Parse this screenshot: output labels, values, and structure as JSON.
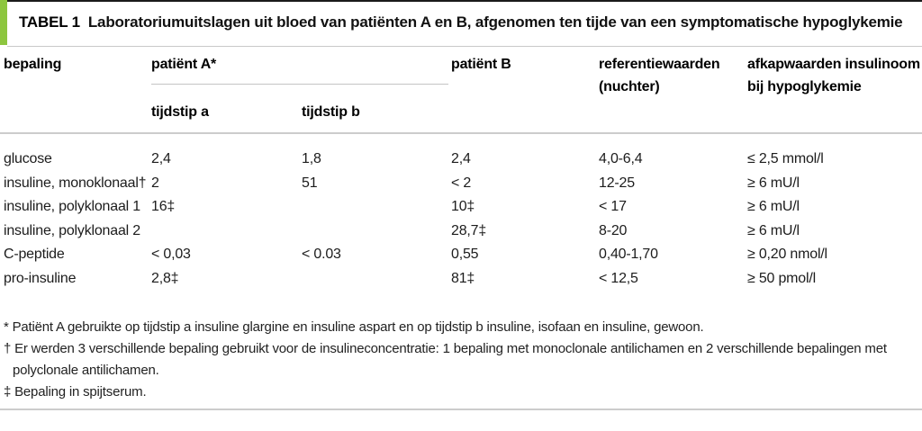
{
  "accent_color": "#8dc63f",
  "title": {
    "label": "TABEL 1",
    "text": "Laboratoriumuitslagen uit bloed van patiënten A en B, afgenomen ten tijde van een symptomatische hypoglykemie"
  },
  "table": {
    "col_headers": {
      "bepaling": "bepaling",
      "patient_a": "patiënt A*",
      "tijdstip_a": "tijdstip a",
      "tijdstip_b": "tijdstip b",
      "patient_b": "patiënt B",
      "referentie_line1": "referentiewaarden",
      "referentie_line2": "(nuchter)",
      "afkap_line1": "afkapwaarden insulinoom",
      "afkap_line2": "bij hypoglykemie"
    },
    "rows": [
      {
        "cells": [
          "glucose",
          "2,4",
          "1,8",
          "2,4",
          "4,0-6,4",
          "≤ 2,5 mmol/l"
        ]
      },
      {
        "cells": [
          "insuline, monoklonaal†",
          "2",
          "51",
          "< 2",
          "12-25",
          "≥ 6 mU/l"
        ]
      },
      {
        "cells": [
          "insuline, polyklonaal 1",
          "16‡",
          "",
          "10‡",
          "< 17",
          "≥ 6 mU/l"
        ]
      },
      {
        "cells": [
          "insuline, polyklonaal 2",
          "",
          "",
          "28,7‡",
          "8-20",
          "≥ 6 mU/l"
        ]
      },
      {
        "cells": [
          "C-peptide",
          "< 0,03",
          "< 0.03",
          "0,55",
          "0,40-1,70",
          "≥ 0,20 nmol/l"
        ]
      },
      {
        "cells": [
          "pro-insuline",
          "2,8‡",
          "",
          "81‡",
          "< 12,5",
          "≥ 50 pmol/l"
        ]
      }
    ]
  },
  "footnotes": [
    "* Patiënt A gebruikte op tijdstip a insuline glargine en insuline aspart en op tijdstip b insuline, isofaan en insuline, gewoon.",
    "† Er werden 3 verschillende bepaling gebruikt voor de insulineconcentratie: 1 bepaling met monoclonale antilichamen en 2 verschillende bepalingen met",
    "polyclonale antilichamen.",
    "‡ Bepaling in spijtserum."
  ]
}
